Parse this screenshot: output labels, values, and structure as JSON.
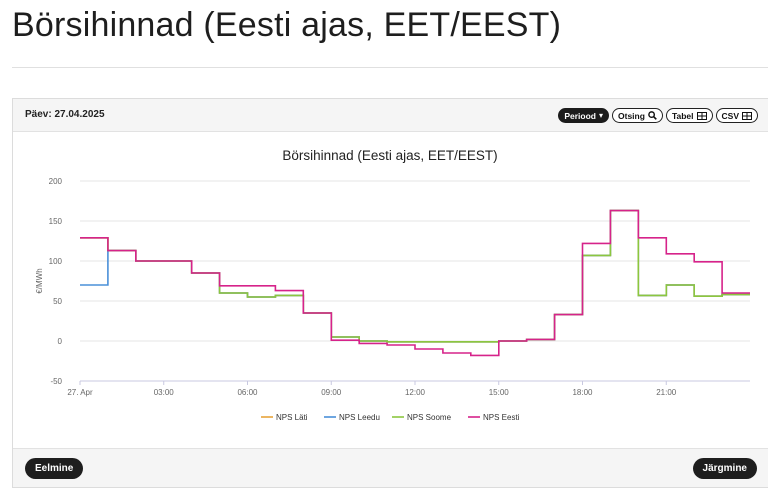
{
  "page": {
    "title": "Börsihinnad (Eesti ajas, EET/EEST)"
  },
  "panel": {
    "date_label": "Päev: 27.04.2025",
    "tools": [
      {
        "label": "Periood",
        "icon": "caret-down-icon",
        "active": true
      },
      {
        "label": "Otsing",
        "icon": "search-icon"
      },
      {
        "label": "Tabel",
        "icon": "table-icon"
      },
      {
        "label": "CSV",
        "icon": "table-icon"
      }
    ],
    "prev_label": "Eelmine",
    "next_label": "Järgmine"
  },
  "chart_data": {
    "type": "line",
    "step": true,
    "title": "Börsihinnad (Eesti ajas, EET/EEST)",
    "ylabel": "€/MWh",
    "xlabel": "",
    "ylim": [
      -50,
      200
    ],
    "yticks": [
      -50,
      0,
      50,
      100,
      150,
      200
    ],
    "xlim": [
      0,
      24
    ],
    "xticks": [
      {
        "x": 0,
        "label": "27. Apr"
      },
      {
        "x": 3,
        "label": "03:00"
      },
      {
        "x": 6,
        "label": "06:00"
      },
      {
        "x": 9,
        "label": "09:00"
      },
      {
        "x": 12,
        "label": "12:00"
      },
      {
        "x": 15,
        "label": "15:00"
      },
      {
        "x": 18,
        "label": "18:00"
      },
      {
        "x": 21,
        "label": "21:00"
      }
    ],
    "grid": true,
    "legend_position": "bottom",
    "hours": [
      0,
      1,
      2,
      3,
      4,
      5,
      6,
      7,
      8,
      9,
      10,
      11,
      12,
      13,
      14,
      15,
      16,
      17,
      18,
      19,
      20,
      21,
      22,
      23
    ],
    "series": [
      {
        "name": "NPS Läti",
        "color": "#e8a33a",
        "values": [
          129,
          113,
          100,
          100,
          85,
          60,
          55,
          57,
          35,
          5,
          0,
          -1,
          -1,
          -1,
          -1,
          0,
          2,
          33,
          107,
          163,
          57,
          70,
          56,
          58
        ]
      },
      {
        "name": "NPS Leedu",
        "color": "#4a90d9",
        "values": [
          70,
          113,
          100,
          100,
          85,
          60,
          55,
          57,
          35,
          5,
          0,
          -1,
          -1,
          -1,
          -1,
          0,
          2,
          33,
          107,
          163,
          57,
          70,
          56,
          58
        ]
      },
      {
        "name": "NPS Soome",
        "color": "#8cc63f",
        "values": [
          129,
          113,
          100,
          100,
          85,
          60,
          55,
          57,
          35,
          5,
          0,
          -1,
          -1,
          -1,
          -1,
          0,
          2,
          33,
          107,
          163,
          57,
          70,
          56,
          58
        ]
      },
      {
        "name": "NPS Eesti",
        "color": "#d6238a",
        "values": [
          129,
          113,
          100,
          100,
          85,
          69,
          69,
          63,
          35,
          1,
          -3,
          -5,
          -10,
          -15,
          -18,
          0,
          2,
          33,
          122,
          163,
          129,
          109,
          99,
          60
        ]
      }
    ]
  }
}
